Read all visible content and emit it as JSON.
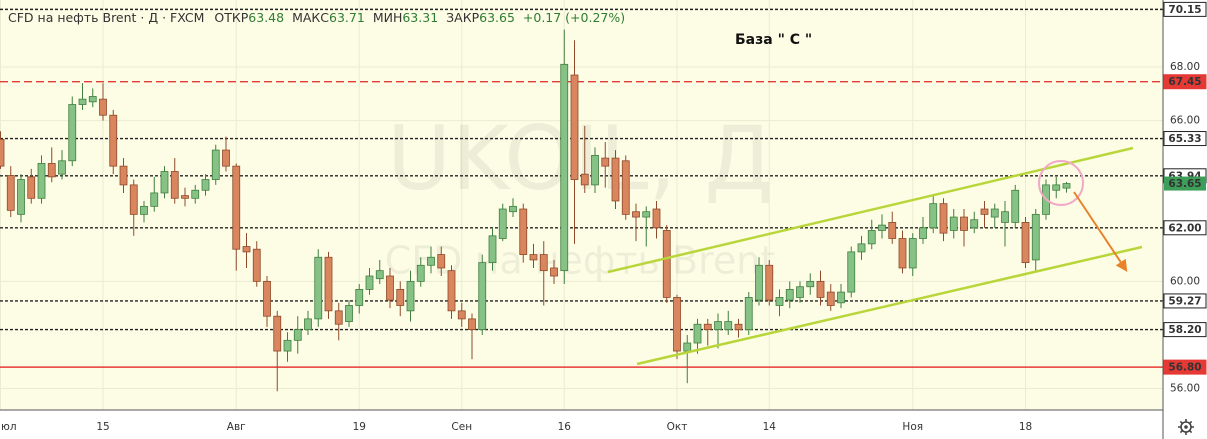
{
  "chart_data": {
    "type": "candlestick",
    "title": "CFD на нефть Brent · Д · FXCM",
    "header_labels": {
      "open": "ОТКР",
      "high": "МАКС",
      "low": "МИН",
      "close": "ЗАКР"
    },
    "change": "+0.17 (+0.27%)",
    "annotation": "База \" С \"",
    "watermark": {
      "symbol": "UKOIL, Д",
      "description": "CFD на нефть Brent"
    },
    "up_color": "#86c286",
    "down_color": "#d9855e",
    "last_color": "#3d9e5a",
    "ylim": [
      55.2,
      70.5
    ],
    "yticks": [
      {
        "value": 68,
        "label": "68.00"
      },
      {
        "value": 66,
        "label": "66.00"
      },
      {
        "value": 60,
        "label": "60.00"
      },
      {
        "value": 56,
        "label": "56.00"
      }
    ],
    "grid": true,
    "levels": [
      {
        "value": 70.15,
        "color": "#222222",
        "style": "dashed"
      },
      {
        "value": 67.45,
        "color": "#e53935",
        "style": "dashed"
      },
      {
        "value": 65.33,
        "color": "#222222",
        "style": "dashed"
      },
      {
        "value": 63.94,
        "color": "#222222",
        "style": "dashed"
      },
      {
        "value": 62,
        "label": "62.00",
        "color": "#222222",
        "style": "dashed"
      },
      {
        "value": 59.27,
        "color": "#222222",
        "style": "dashed"
      },
      {
        "value": 58.2,
        "label": "58.20",
        "color": "#222222",
        "style": "dashed"
      },
      {
        "value": 56.8,
        "label": "56.80",
        "color": "#e53935",
        "style": "solid"
      }
    ],
    "categories": [
      "юл",
      null,
      null,
      null,
      null,
      null,
      null,
      null,
      null,
      null,
      "15",
      null,
      null,
      null,
      null,
      null,
      null,
      null,
      null,
      null,
      null,
      null,
      null,
      "Авг",
      null,
      null,
      null,
      null,
      null,
      null,
      null,
      null,
      null,
      null,
      null,
      "19",
      null,
      null,
      null,
      null,
      null,
      null,
      null,
      null,
      null,
      "Сен",
      null,
      null,
      null,
      null,
      null,
      null,
      null,
      null,
      null,
      "16",
      null,
      null,
      null,
      null,
      null,
      null,
      null,
      null,
      null,
      null,
      "Окт",
      null,
      null,
      null,
      null,
      null,
      null,
      null,
      null,
      "14",
      null,
      null,
      null,
      null,
      null,
      null,
      null,
      null,
      null,
      null,
      null,
      null,
      null,
      "Ноя",
      null,
      null,
      null,
      null,
      null,
      null,
      null,
      null,
      null,
      null,
      "18",
      null,
      null,
      null,
      null
    ],
    "open": [
      65.3,
      63.95,
      62.5,
      63.9,
      63.1,
      64.4,
      64.0,
      64.5,
      66.6,
      66.7,
      66.8,
      66.2,
      64.3,
      63.6,
      62.5,
      62.8,
      63.3,
      64.1,
      63.2,
      63.1,
      63.4,
      63.8,
      64.9,
      64.3,
      61.3,
      61.2,
      60.0,
      58.7,
      57.4,
      57.8,
      58.2,
      58.6,
      60.9,
      58.9,
      58.5,
      59.1,
      59.7,
      60.1,
      60.2,
      59.7,
      58.9,
      60.0,
      60.6,
      61.0,
      60.4,
      58.9,
      58.6,
      58.2,
      60.7,
      61.6,
      62.6,
      62.7,
      61.0,
      61.0,
      60.5,
      60.4,
      67.7,
      64.0,
      63.6,
      64.6,
      64.6,
      64.5,
      62.6,
      62.4,
      62.7,
      61.9,
      59.4,
      57.4,
      57.7,
      58.4,
      58.2,
      58.2,
      58.4,
      58.2,
      59.3,
      60.6,
      59.1,
      59.3,
      59.4,
      59.8,
      60.0,
      59.6,
      59.2,
      59.6,
      61.1,
      61.4,
      61.9,
      62.2,
      61.6,
      60.5,
      61.6,
      62.0,
      62.9,
      61.9,
      62.4,
      62.0,
      62.7,
      62.4,
      62.2,
      62.2,
      62.2,
      60.8,
      62.5,
      63.4,
      63.48
    ],
    "high": [
      65.6,
      64.3,
      64.0,
      64.2,
      64.7,
      65.0,
      64.9,
      66.9,
      67.4,
      67.2,
      67.4,
      66.4,
      64.6,
      63.8,
      63.0,
      63.9,
      64.3,
      64.6,
      63.5,
      63.6,
      64.0,
      65.1,
      65.4,
      64.4,
      61.8,
      61.5,
      60.2,
      58.9,
      58.1,
      58.7,
      58.9,
      61.2,
      61.1,
      59.2,
      59.3,
      59.9,
      60.5,
      60.8,
      60.5,
      60.0,
      60.4,
      60.9,
      61.3,
      61.3,
      60.6,
      59.2,
      58.8,
      61.0,
      62.0,
      62.9,
      63.1,
      62.9,
      61.4,
      61.5,
      60.8,
      69.4,
      69.0,
      65.8,
      65.0,
      65.2,
      64.9,
      64.7,
      62.9,
      62.8,
      63.0,
      62.1,
      59.5,
      58.0,
      58.6,
      58.6,
      58.8,
      58.9,
      58.6,
      59.6,
      60.9,
      60.8,
      59.7,
      60.0,
      60.0,
      60.3,
      60.4,
      59.9,
      59.9,
      61.3,
      61.7,
      62.3,
      62.5,
      62.6,
      61.9,
      61.8,
      62.4,
      63.2,
      63.1,
      62.7,
      62.7,
      62.6,
      63.0,
      62.9,
      63.0,
      63.6,
      62.4,
      62.7,
      63.8,
      63.9,
      63.71
    ],
    "low": [
      64.2,
      62.4,
      62.2,
      62.9,
      62.9,
      63.7,
      63.8,
      64.3,
      66.4,
      66.5,
      66.0,
      64.0,
      63.3,
      61.7,
      62.2,
      62.6,
      63.1,
      62.9,
      62.8,
      62.9,
      63.2,
      63.6,
      64.1,
      60.4,
      60.5,
      59.8,
      58.3,
      55.9,
      57.0,
      57.3,
      58.0,
      58.3,
      58.6,
      57.8,
      58.3,
      58.8,
      59.5,
      59.9,
      59.0,
      58.7,
      58.5,
      59.8,
      60.3,
      60.2,
      58.6,
      58.3,
      57.1,
      58.0,
      60.4,
      61.5,
      62.4,
      60.7,
      60.5,
      59.1,
      59.9,
      59.9,
      61.4,
      63.3,
      63.3,
      63.5,
      62.7,
      62.3,
      61.5,
      61.3,
      61.6,
      59.2,
      57.1,
      56.2,
      57.3,
      57.6,
      57.5,
      58.0,
      57.9,
      58.0,
      59.1,
      59.1,
      58.7,
      59.0,
      59.2,
      59.5,
      59.1,
      58.9,
      59.0,
      59.4,
      60.8,
      61.2,
      61.6,
      61.4,
      60.3,
      60.2,
      61.4,
      61.8,
      61.5,
      61.6,
      61.3,
      61.8,
      62.0,
      62.0,
      61.3,
      62.0,
      60.5,
      60.4,
      62.3,
      63.1,
      63.31
    ],
    "close": [
      64.3,
      62.65,
      63.8,
      63.1,
      64.4,
      63.9,
      64.5,
      66.6,
      66.8,
      66.9,
      66.2,
      64.3,
      63.6,
      62.5,
      62.8,
      63.3,
      64.1,
      63.1,
      63.1,
      63.4,
      63.8,
      64.9,
      64.3,
      61.2,
      61.1,
      60.0,
      58.7,
      57.4,
      57.8,
      58.2,
      58.6,
      60.9,
      58.9,
      58.4,
      59.1,
      59.7,
      60.2,
      60.4,
      59.3,
      59.1,
      60.0,
      60.6,
      60.9,
      60.5,
      58.9,
      58.6,
      58.2,
      60.7,
      61.7,
      62.7,
      62.8,
      61.0,
      60.8,
      60.4,
      60.2,
      68.1,
      63.8,
      63.6,
      64.7,
      64.3,
      63.0,
      62.5,
      62.4,
      62.6,
      62.0,
      59.4,
      57.4,
      57.7,
      58.4,
      58.2,
      58.5,
      58.5,
      58.2,
      59.4,
      60.6,
      59.3,
      59.4,
      59.7,
      59.8,
      60.0,
      59.4,
      59.1,
      59.6,
      61.1,
      61.4,
      61.9,
      62.1,
      61.6,
      60.5,
      61.6,
      62.0,
      62.9,
      61.8,
      62.4,
      61.9,
      62.3,
      62.5,
      62.7,
      62.6,
      63.4,
      60.7,
      62.5,
      63.6,
      63.6,
      63.65
    ]
  }
}
